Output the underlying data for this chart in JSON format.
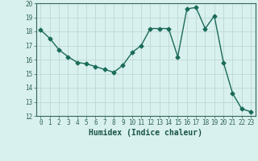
{
  "x": [
    0,
    1,
    2,
    3,
    4,
    5,
    6,
    7,
    8,
    9,
    10,
    11,
    12,
    13,
    14,
    15,
    16,
    17,
    18,
    19,
    20,
    21,
    22,
    23
  ],
  "y": [
    18.1,
    17.5,
    16.7,
    16.2,
    15.8,
    15.7,
    15.5,
    15.3,
    15.1,
    15.6,
    16.5,
    17.0,
    18.2,
    18.2,
    18.2,
    16.2,
    19.6,
    19.7,
    18.2,
    19.1,
    15.8,
    13.6,
    12.5,
    12.3
  ],
  "line_color": "#1a6b5a",
  "marker": "D",
  "markersize": 2.5,
  "linewidth": 1.0,
  "xlabel": "Humidex (Indice chaleur)",
  "ylabel": "",
  "xlim": [
    -0.5,
    23.5
  ],
  "ylim": [
    12,
    20
  ],
  "yticks": [
    12,
    13,
    14,
    15,
    16,
    17,
    18,
    19,
    20
  ],
  "xticks": [
    0,
    1,
    2,
    3,
    4,
    5,
    6,
    7,
    8,
    9,
    10,
    11,
    12,
    13,
    14,
    15,
    16,
    17,
    18,
    19,
    20,
    21,
    22,
    23
  ],
  "bg_color": "#d8f0ee",
  "grid_color": "#c0d8d4",
  "axes_color": "#336655",
  "label_color": "#1a5545",
  "tick_color": "#336655"
}
